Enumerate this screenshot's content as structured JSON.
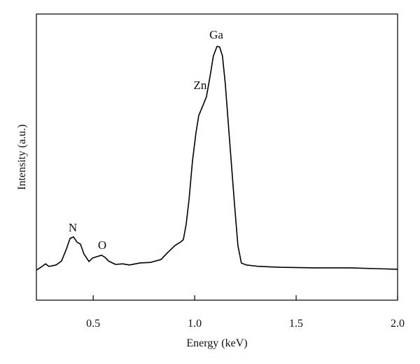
{
  "chart_data": {
    "type": "line",
    "x_label": "Energy (keV)",
    "y_label": "Intensity (a.u.)",
    "annotations": [
      "N",
      "O",
      "Zn",
      "Ga"
    ],
    "xlim": [
      0.22,
      2.0
    ],
    "xticks": [
      0.5,
      1.0,
      1.5,
      2.0
    ],
    "ylim": [
      0,
      100
    ],
    "series": [
      {
        "color": "#000000",
        "x": [
          0.22,
          0.248,
          0.265,
          0.282,
          0.317,
          0.344,
          0.368,
          0.386,
          0.403,
          0.42,
          0.437,
          0.454,
          0.479,
          0.496,
          0.517,
          0.541,
          0.558,
          0.575,
          0.61,
          0.645,
          0.679,
          0.73,
          0.782,
          0.834,
          0.868,
          0.903,
          0.93,
          0.944,
          0.958,
          0.972,
          0.989,
          1.006,
          1.02,
          1.041,
          1.058,
          1.075,
          1.092,
          1.11,
          1.123,
          1.137,
          1.151,
          1.172,
          1.196,
          1.213,
          1.23,
          1.254,
          1.317,
          1.42,
          1.592,
          1.765,
          1.903,
          2.0
        ],
        "values": [
          10.5,
          11.8,
          12.7,
          11.8,
          12.3,
          13.7,
          17.9,
          21.6,
          22.1,
          20.3,
          19.6,
          16.2,
          13.5,
          14.7,
          15.2,
          15.7,
          15.0,
          13.7,
          12.5,
          12.7,
          12.3,
          13.0,
          13.2,
          14.2,
          16.7,
          19.1,
          20.3,
          21.1,
          26.5,
          35.0,
          48.5,
          58.3,
          64.5,
          68.1,
          71.1,
          77.9,
          85.3,
          88.7,
          88.5,
          85.3,
          75.5,
          55.9,
          33.8,
          19.1,
          13.0,
          12.3,
          11.8,
          11.5,
          11.3,
          11.3,
          11.0,
          10.8
        ]
      }
    ]
  }
}
